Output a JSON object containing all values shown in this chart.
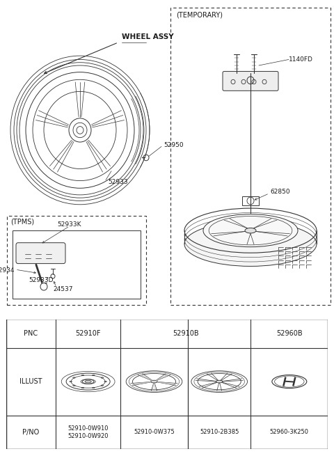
{
  "bg_color": "#ffffff",
  "text_color": "#1a1a1a",
  "line_color": "#333333",
  "fs_label": 7,
  "fs_header": 7,
  "table": {
    "pnc_row": [
      "PNC",
      "52910F",
      "52910B",
      "",
      "52960B"
    ],
    "illust_label": "ILLUST",
    "pno_label": "P/NO",
    "pnos": [
      "52910-0W910\n52910-0W920",
      "52910-0W375",
      "52910-2B385",
      "52960-3K250"
    ],
    "col_divs": [
      0.0,
      0.155,
      0.355,
      0.565,
      0.76,
      1.0
    ],
    "row_divs": [
      0.0,
      0.26,
      0.78,
      1.0
    ]
  }
}
